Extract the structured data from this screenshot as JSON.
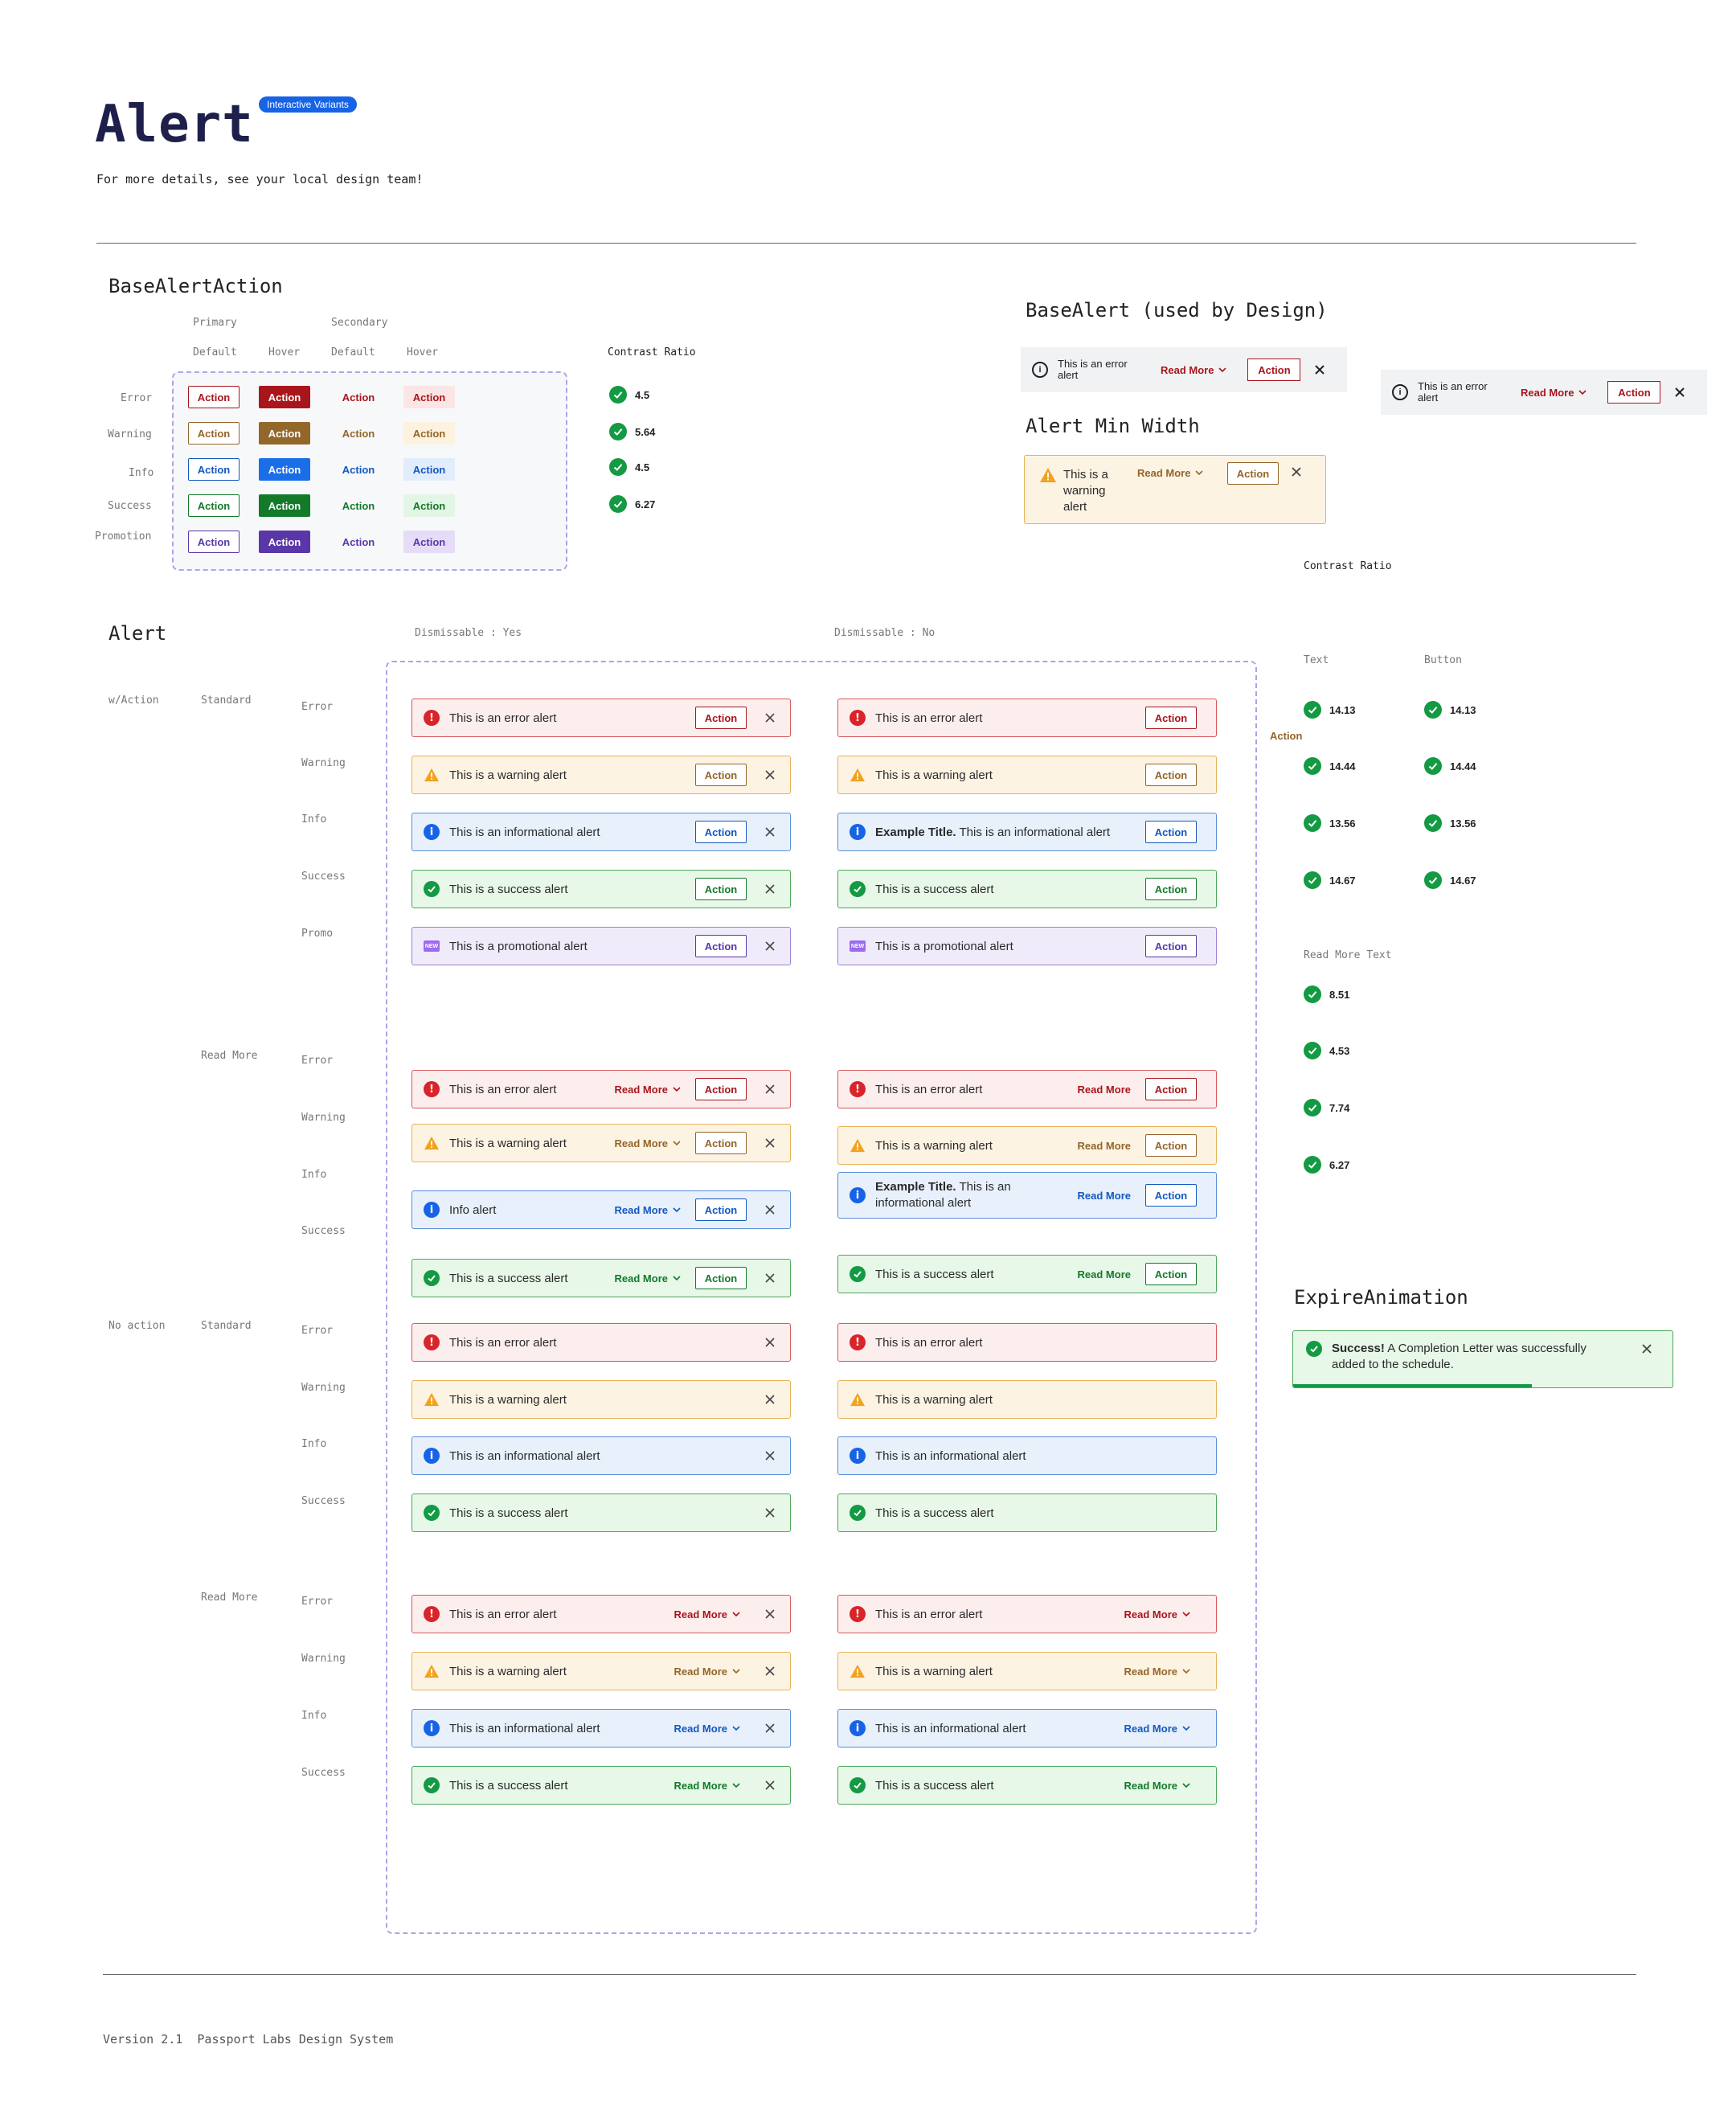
{
  "header": {
    "title": "Alert",
    "badge": "Interactive Variants",
    "subtitle": "For more details, see your local design team!"
  },
  "colors": {
    "error": "#a8161c",
    "warning": "#93662a",
    "info": "#1358c0",
    "success": "#137a2a",
    "promotion": "#5a37a8",
    "badge": "#1763e5",
    "check": "#139a43"
  },
  "base_alert_action": {
    "title": "BaseAlertAction",
    "group_primary": "Primary",
    "group_secondary": "Secondary",
    "col_default": "Default",
    "col_hover": "Hover",
    "contrast_label": "Contrast Ratio",
    "button_label": "Action",
    "rows": [
      {
        "label": "Error",
        "ratio": "4.5"
      },
      {
        "label": "Warning",
        "ratio": "5.64"
      },
      {
        "label": "Info",
        "ratio": "4.5"
      },
      {
        "label": "Success",
        "ratio": "6.27"
      },
      {
        "label": "Promotion",
        "ratio": ""
      }
    ]
  },
  "base_alert": {
    "title": "BaseAlert (used by Design)",
    "text": "This is an error alert",
    "read_more": "Read More",
    "action": "Action"
  },
  "min_width": {
    "title": "Alert Min Width",
    "text": "This is a warning alert",
    "read_more": "Read More",
    "action": "Action"
  },
  "alert_section": {
    "title": "Alert",
    "dismissable_yes": "Dismissable : Yes",
    "dismissable_no": "Dismissable : No",
    "group_with_action": "w/Action",
    "group_no_action": "No action",
    "variant_standard": "Standard",
    "variant_read_more": "Read More",
    "type_labels": {
      "error": "Error",
      "warning": "Warning",
      "info": "Info",
      "success": "Success",
      "promo": "Promo"
    },
    "action_label": "Action",
    "read_more_label": "Read More",
    "new_badge": "NEW",
    "texts": {
      "error": "This is an error alert",
      "warning": "This is a warning alert",
      "info": "This is an informational alert",
      "success": "This is a success alert",
      "promo": "This is a promotional alert",
      "info_short": "Info alert",
      "example_title": "Example Title.",
      "example_body": "This is an informational alert",
      "example_body_wrap1": "This is an",
      "example_body_wrap2": "informational alert"
    }
  },
  "contrast": {
    "title": "Contrast Ratio",
    "col_text": "Text",
    "col_button": "Button",
    "action_note": "Action",
    "text_ratios": [
      "14.13",
      "14.44",
      "13.56",
      "14.67"
    ],
    "button_ratios": [
      "14.13",
      "14.44",
      "13.56",
      "14.67"
    ],
    "read_more_title": "Read More Text",
    "read_more_ratios": [
      "8.51",
      "4.53",
      "7.74",
      "6.27"
    ]
  },
  "expire": {
    "title": "ExpireAnimation",
    "bold": "Success!",
    "text": "A Completion Letter was successfully",
    "text2": "added to the schedule.",
    "progress": 0.63
  },
  "footer": {
    "version": "Version 2.1",
    "system": "Passport Labs Design System"
  }
}
